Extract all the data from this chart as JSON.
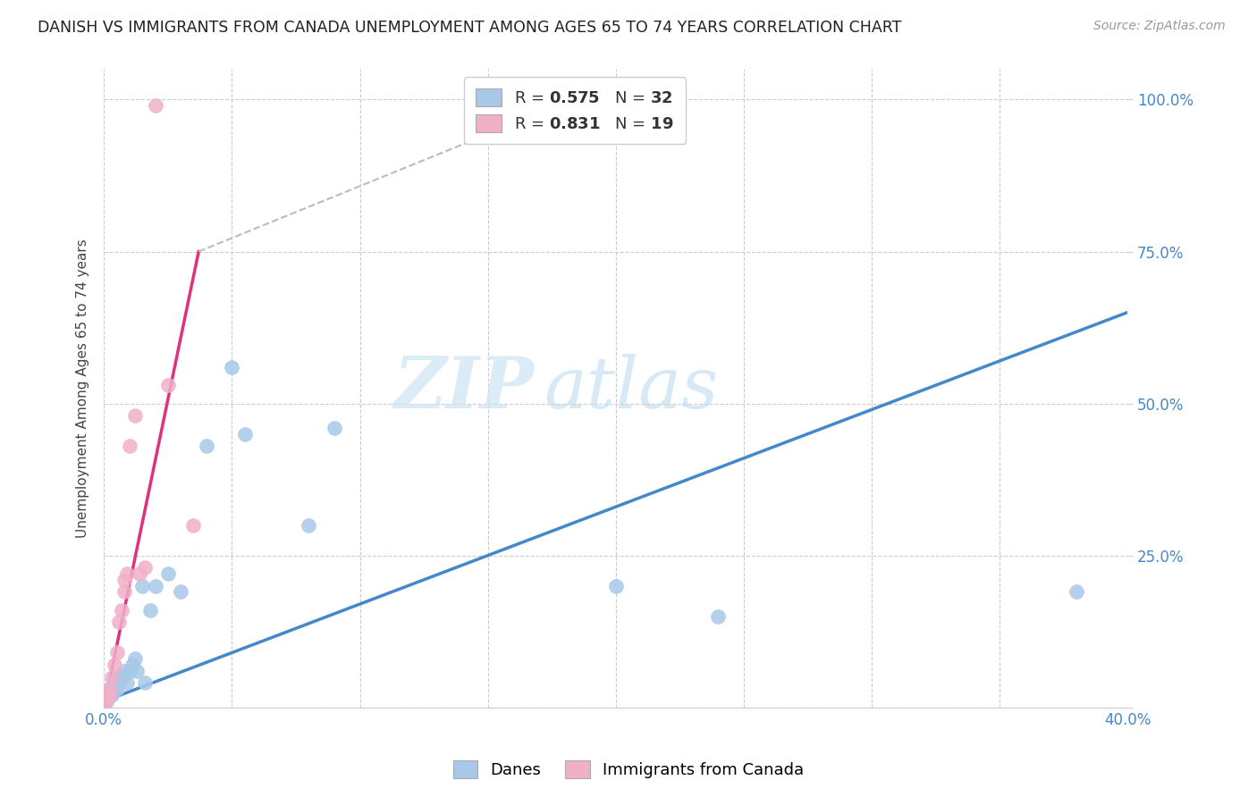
{
  "title": "DANISH VS IMMIGRANTS FROM CANADA UNEMPLOYMENT AMONG AGES 65 TO 74 YEARS CORRELATION CHART",
  "source": "Source: ZipAtlas.com",
  "ylabel": "Unemployment Among Ages 65 to 74 years",
  "xlim": [
    0.0,
    0.4
  ],
  "ylim": [
    0.0,
    1.05
  ],
  "danes_color": "#a8c8e8",
  "canada_color": "#f0b0c8",
  "danes_line_color": "#4488cc",
  "canada_line_color": "#e03080",
  "danes_R": 0.575,
  "danes_N": 32,
  "canada_R": 0.831,
  "canada_N": 19,
  "legend_danes_label": "Danes",
  "legend_canada_label": "Immigrants from Canada",
  "watermark_zip": "ZIP",
  "watermark_atlas": "atlas",
  "background_color": "#ffffff",
  "grid_color": "#cccccc",
  "danes_x": [
    0.001,
    0.001,
    0.002,
    0.002,
    0.003,
    0.003,
    0.004,
    0.004,
    0.005,
    0.005,
    0.006,
    0.007,
    0.008,
    0.009,
    0.01,
    0.011,
    0.012,
    0.013,
    0.015,
    0.016,
    0.018,
    0.02,
    0.025,
    0.03,
    0.04,
    0.05,
    0.055,
    0.08,
    0.09,
    0.2,
    0.24,
    0.38
  ],
  "danes_y": [
    0.01,
    0.02,
    0.02,
    0.03,
    0.02,
    0.03,
    0.03,
    0.04,
    0.03,
    0.05,
    0.04,
    0.05,
    0.06,
    0.04,
    0.06,
    0.07,
    0.08,
    0.06,
    0.2,
    0.04,
    0.16,
    0.2,
    0.22,
    0.19,
    0.43,
    0.56,
    0.45,
    0.3,
    0.46,
    0.2,
    0.15,
    0.19
  ],
  "canada_x": [
    0.001,
    0.001,
    0.002,
    0.002,
    0.003,
    0.004,
    0.005,
    0.006,
    0.007,
    0.008,
    0.008,
    0.009,
    0.01,
    0.012,
    0.014,
    0.016,
    0.02,
    0.025,
    0.035
  ],
  "canada_y": [
    0.01,
    0.02,
    0.02,
    0.03,
    0.05,
    0.07,
    0.09,
    0.14,
    0.16,
    0.19,
    0.21,
    0.22,
    0.43,
    0.48,
    0.22,
    0.23,
    0.99,
    0.53,
    0.3
  ],
  "blue_line_x": [
    0.0,
    0.4
  ],
  "blue_line_y": [
    0.01,
    0.65
  ],
  "pink_line_x": [
    0.0,
    0.037
  ],
  "pink_line_y": [
    0.0,
    0.75
  ],
  "dashed_line_x": [
    0.037,
    0.195
  ],
  "dashed_line_y": [
    0.75,
    1.02
  ]
}
